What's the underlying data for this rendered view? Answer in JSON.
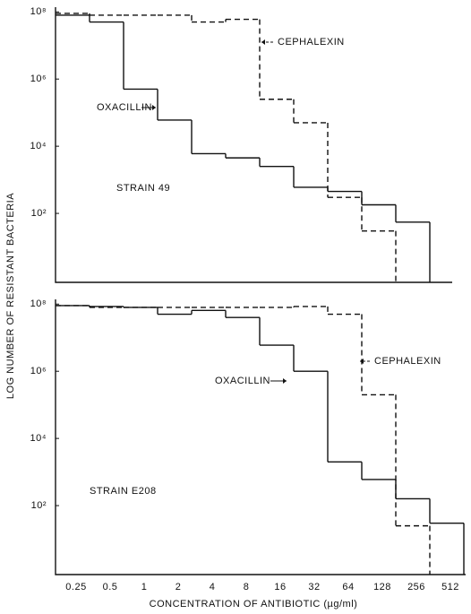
{
  "ylabel": "LOG NUMBER OF RESISTANT BACTERIA",
  "xlabel": "CONCENTRATION OF ANTIBIOTIC (µg/ml)",
  "categories": [
    "0.25",
    "0.5",
    "1",
    "2",
    "4",
    "8",
    "16",
    "32",
    "64",
    "128",
    "256",
    "512"
  ],
  "chart_data": [
    {
      "type": "step",
      "log_y": true,
      "ylim": [
        1,
        130000000
      ],
      "yticks": [
        {
          "value": 100,
          "label": "10²"
        },
        {
          "value": 10000,
          "label": "10⁴"
        },
        {
          "value": 1000000,
          "label": "10⁶"
        },
        {
          "value": 100000000,
          "label": "10⁸"
        }
      ],
      "annotations": [
        "CEPHALEXIN",
        "OXACILLIN",
        "STRAIN 49"
      ],
      "series": [
        {
          "name": "OXACILLIN",
          "color": "#111111",
          "style": "solid",
          "values": [
            80000000,
            50000000,
            500000,
            60000,
            6000,
            4500,
            2500,
            600,
            450,
            180,
            55,
            null
          ]
        },
        {
          "name": "CEPHALEXIN",
          "color": "#111111",
          "style": "dashed",
          "values": [
            90000000,
            80000000,
            80000000,
            80000000,
            50000000,
            60000000,
            250000,
            50000,
            300,
            30,
            null,
            null
          ]
        }
      ]
    },
    {
      "type": "step",
      "log_y": true,
      "ylim": [
        1,
        130000000
      ],
      "yticks": [
        {
          "value": 100,
          "label": "10²"
        },
        {
          "value": 10000,
          "label": "10⁴"
        },
        {
          "value": 1000000,
          "label": "10⁶"
        },
        {
          "value": 100000000,
          "label": "10⁸"
        }
      ],
      "annotations": [
        "OXACILLIN",
        "CEPHALEXIN",
        "STRAIN E208"
      ],
      "series": [
        {
          "name": "OXACILLIN",
          "color": "#111111",
          "style": "solid",
          "values": [
            90000000,
            85000000,
            80000000,
            50000000,
            65000000,
            40000000,
            6000000,
            1000000,
            2000,
            600,
            160,
            30
          ]
        },
        {
          "name": "CEPHALEXIN",
          "color": "#111111",
          "style": "dashed",
          "values": [
            90000000,
            80000000,
            80000000,
            80000000,
            80000000,
            80000000,
            80000000,
            85000000,
            50000000,
            200000,
            25,
            null
          ]
        }
      ]
    }
  ]
}
